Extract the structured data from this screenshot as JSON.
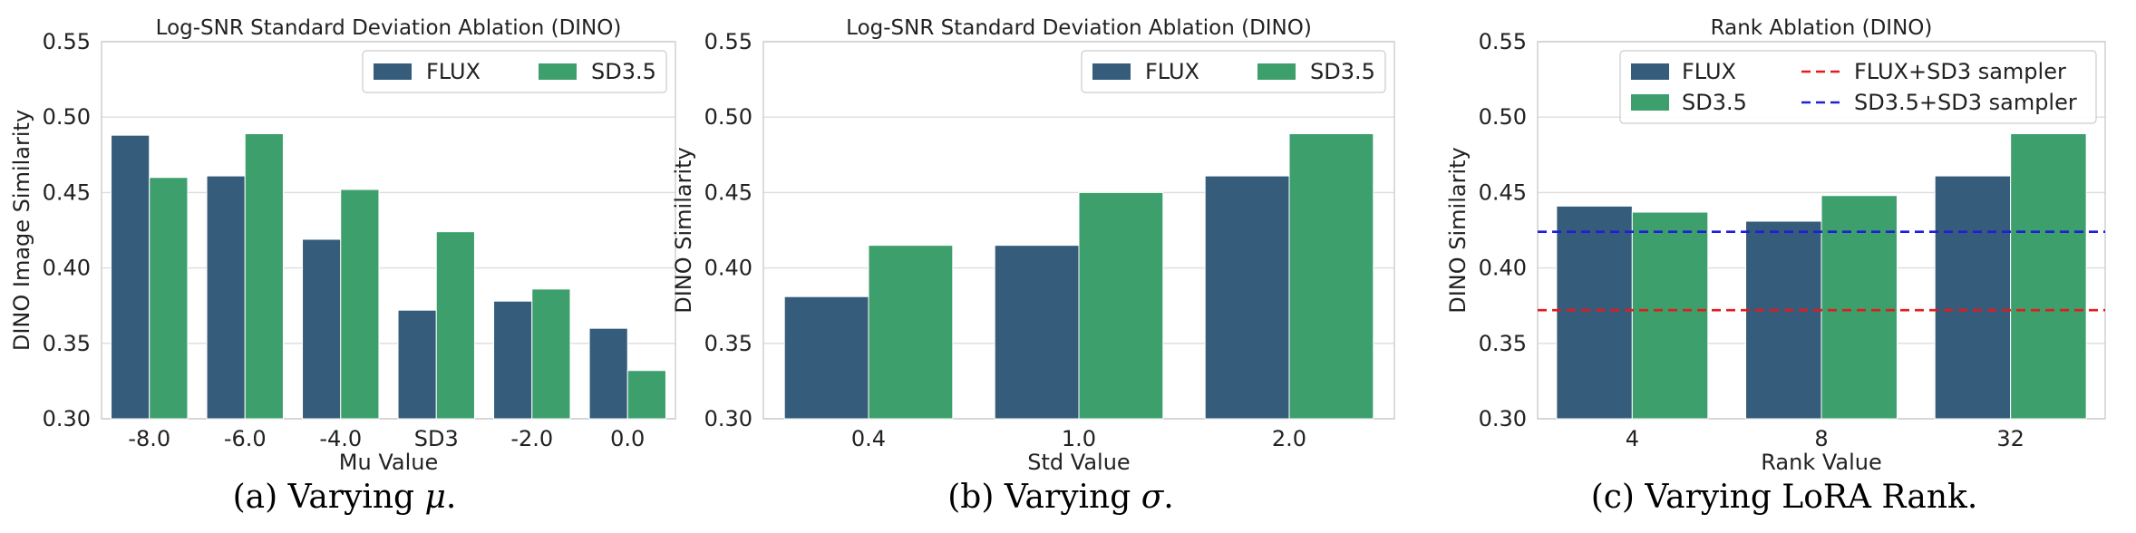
{
  "colors": {
    "flux": "#355c7a",
    "sd35": "#3c9f6c",
    "flux_sd3_line": "#e41a1c",
    "sd35_sd3_line": "#1f1fd6",
    "grid": "#dddddd",
    "spine": "#cccccc"
  },
  "captions": [
    {
      "prefix": "(a) Varying ",
      "symbol": "μ",
      "suffix": "."
    },
    {
      "prefix": "(b) Varying ",
      "symbol": "σ",
      "suffix": "."
    },
    {
      "prefix": "(c) Varying LoRA Rank.",
      "symbol": "",
      "suffix": ""
    }
  ],
  "chart_data": [
    {
      "type": "bar",
      "title": "Log-SNR Standard Deviation Ablation (DINO)",
      "xlabel": "Mu Value",
      "ylabel": "DINO Image Similarity",
      "ylim": [
        0.3,
        0.55
      ],
      "yticks": [
        "0.30",
        "0.35",
        "0.40",
        "0.45",
        "0.50",
        "0.55"
      ],
      "grid": true,
      "legend_position": "top-right",
      "legend_layout": "row",
      "categories": [
        "-8.0",
        "-6.0",
        "-4.0",
        "SD3",
        "-2.0",
        "0.0"
      ],
      "series": [
        {
          "name": "FLUX",
          "values": [
            0.488,
            0.461,
            0.419,
            0.372,
            0.378,
            0.36
          ]
        },
        {
          "name": "SD3.5",
          "values": [
            0.46,
            0.489,
            0.452,
            0.424,
            0.386,
            0.332
          ]
        }
      ],
      "hlines": []
    },
    {
      "type": "bar",
      "title": "Log-SNR Standard Deviation Ablation (DINO)",
      "xlabel": "Std Value",
      "ylabel": "DINO Similarity",
      "ylim": [
        0.3,
        0.55
      ],
      "yticks": [
        "0.30",
        "0.35",
        "0.40",
        "0.45",
        "0.50",
        "0.55"
      ],
      "grid": true,
      "legend_position": "top-right",
      "legend_layout": "row",
      "categories": [
        "0.4",
        "1.0",
        "2.0"
      ],
      "series": [
        {
          "name": "FLUX",
          "values": [
            0.381,
            0.415,
            0.461
          ]
        },
        {
          "name": "SD3.5",
          "values": [
            0.415,
            0.45,
            0.489
          ]
        }
      ],
      "hlines": []
    },
    {
      "type": "bar",
      "title": "Rank Ablation (DINO)",
      "xlabel": "Rank Value",
      "ylabel": "DINO Similarity",
      "ylim": [
        0.3,
        0.55
      ],
      "yticks": [
        "0.30",
        "0.35",
        "0.40",
        "0.45",
        "0.50",
        "0.55"
      ],
      "grid": true,
      "legend_position": "top-right",
      "legend_layout": "grid",
      "categories": [
        "4",
        "8",
        "32"
      ],
      "series": [
        {
          "name": "FLUX",
          "values": [
            0.441,
            0.431,
            0.461
          ]
        },
        {
          "name": "SD3.5",
          "values": [
            0.437,
            0.448,
            0.489
          ]
        }
      ],
      "hlines": [
        {
          "name": "FLUX+SD3 sampler",
          "value": 0.372,
          "color": "#e41a1c"
        },
        {
          "name": "SD3.5+SD3 sampler",
          "value": 0.424,
          "color": "#1f1fd6"
        }
      ]
    }
  ]
}
